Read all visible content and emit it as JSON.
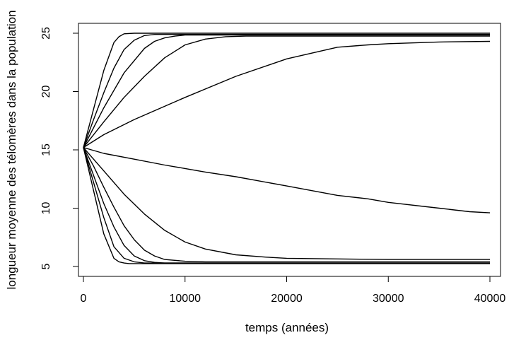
{
  "chart_data": {
    "type": "line",
    "title": "",
    "xlabel": "temps (années)",
    "ylabel": "longueur moyenne des télomères dans la population",
    "xlim": [
      0,
      40000
    ],
    "ylim": [
      5,
      25
    ],
    "x_ticks": [
      0,
      10000,
      20000,
      30000,
      40000
    ],
    "y_ticks": [
      5,
      10,
      15,
      20,
      25
    ],
    "grid": false,
    "legend": "none",
    "line_color": "#000000",
    "series": [
      {
        "x": [
          0,
          1000,
          2000,
          3000,
          3500,
          4000,
          5000,
          6000,
          10000,
          20000,
          30000,
          40000
        ],
        "y": [
          15.2,
          18.5,
          21.8,
          24.2,
          24.7,
          24.95,
          25.0,
          25.0,
          25.0,
          25.0,
          25.0,
          25.0
        ]
      },
      {
        "x": [
          0,
          1000,
          2000,
          3000,
          4000,
          5000,
          6000,
          7000,
          10000,
          20000,
          30000,
          40000
        ],
        "y": [
          15.2,
          17.6,
          19.9,
          22.0,
          23.6,
          24.4,
          24.8,
          24.9,
          24.9,
          24.9,
          24.9,
          24.9
        ]
      },
      {
        "x": [
          0,
          2000,
          4000,
          6000,
          7000,
          8000,
          9000,
          10000,
          12000,
          20000,
          30000,
          40000
        ],
        "y": [
          15.2,
          18.6,
          21.6,
          23.7,
          24.3,
          24.6,
          24.75,
          24.85,
          24.85,
          24.85,
          24.85,
          24.85
        ]
      },
      {
        "x": [
          0,
          2000,
          4000,
          6000,
          8000,
          10000,
          12000,
          14000,
          16000,
          20000,
          30000,
          40000
        ],
        "y": [
          15.2,
          17.4,
          19.5,
          21.3,
          22.9,
          24.0,
          24.5,
          24.7,
          24.75,
          24.75,
          24.75,
          24.75
        ]
      },
      {
        "x": [
          0,
          2000,
          5000,
          10000,
          15000,
          20000,
          22000,
          25000,
          28000,
          30000,
          35000,
          40000
        ],
        "y": [
          15.2,
          16.3,
          17.6,
          19.5,
          21.3,
          22.8,
          23.2,
          23.8,
          24.0,
          24.1,
          24.25,
          24.3
        ]
      },
      {
        "x": [
          0,
          2000,
          5000,
          8000,
          10000,
          12000,
          15000,
          20000,
          25000,
          28000,
          30000,
          35000,
          38000,
          40000
        ],
        "y": [
          15.2,
          14.7,
          14.2,
          13.7,
          13.4,
          13.1,
          12.7,
          11.9,
          11.1,
          10.8,
          10.5,
          10.0,
          9.7,
          9.6
        ]
      },
      {
        "x": [
          0,
          2000,
          4000,
          6000,
          8000,
          10000,
          12000,
          15000,
          18000,
          20000,
          25000,
          30000,
          40000
        ],
        "y": [
          15.2,
          13.2,
          11.2,
          9.5,
          8.1,
          7.1,
          6.5,
          6.0,
          5.8,
          5.7,
          5.65,
          5.6,
          5.6
        ]
      },
      {
        "x": [
          0,
          1000,
          2000,
          3000,
          4000,
          5000,
          6000,
          7000,
          8000,
          10000,
          12000,
          14000,
          40000
        ],
        "y": [
          15.2,
          13.6,
          11.8,
          10.1,
          8.5,
          7.3,
          6.4,
          5.9,
          5.6,
          5.45,
          5.4,
          5.4,
          5.4
        ]
      },
      {
        "x": [
          0,
          1000,
          2000,
          3000,
          4000,
          5000,
          6000,
          7000,
          8000,
          10000,
          40000
        ],
        "y": [
          15.2,
          12.8,
          10.4,
          8.4,
          6.8,
          5.9,
          5.5,
          5.35,
          5.3,
          5.3,
          5.3
        ]
      },
      {
        "x": [
          0,
          1000,
          2000,
          3000,
          4000,
          5000,
          6000,
          7000,
          40000
        ],
        "y": [
          15.2,
          12.2,
          9.2,
          6.7,
          5.7,
          5.4,
          5.3,
          5.3,
          5.3
        ]
      },
      {
        "x": [
          0,
          1000,
          2000,
          3000,
          3500,
          4000,
          4500,
          5000,
          40000
        ],
        "y": [
          15.2,
          11.5,
          7.8,
          5.7,
          5.4,
          5.3,
          5.25,
          5.25,
          5.25
        ]
      }
    ]
  }
}
